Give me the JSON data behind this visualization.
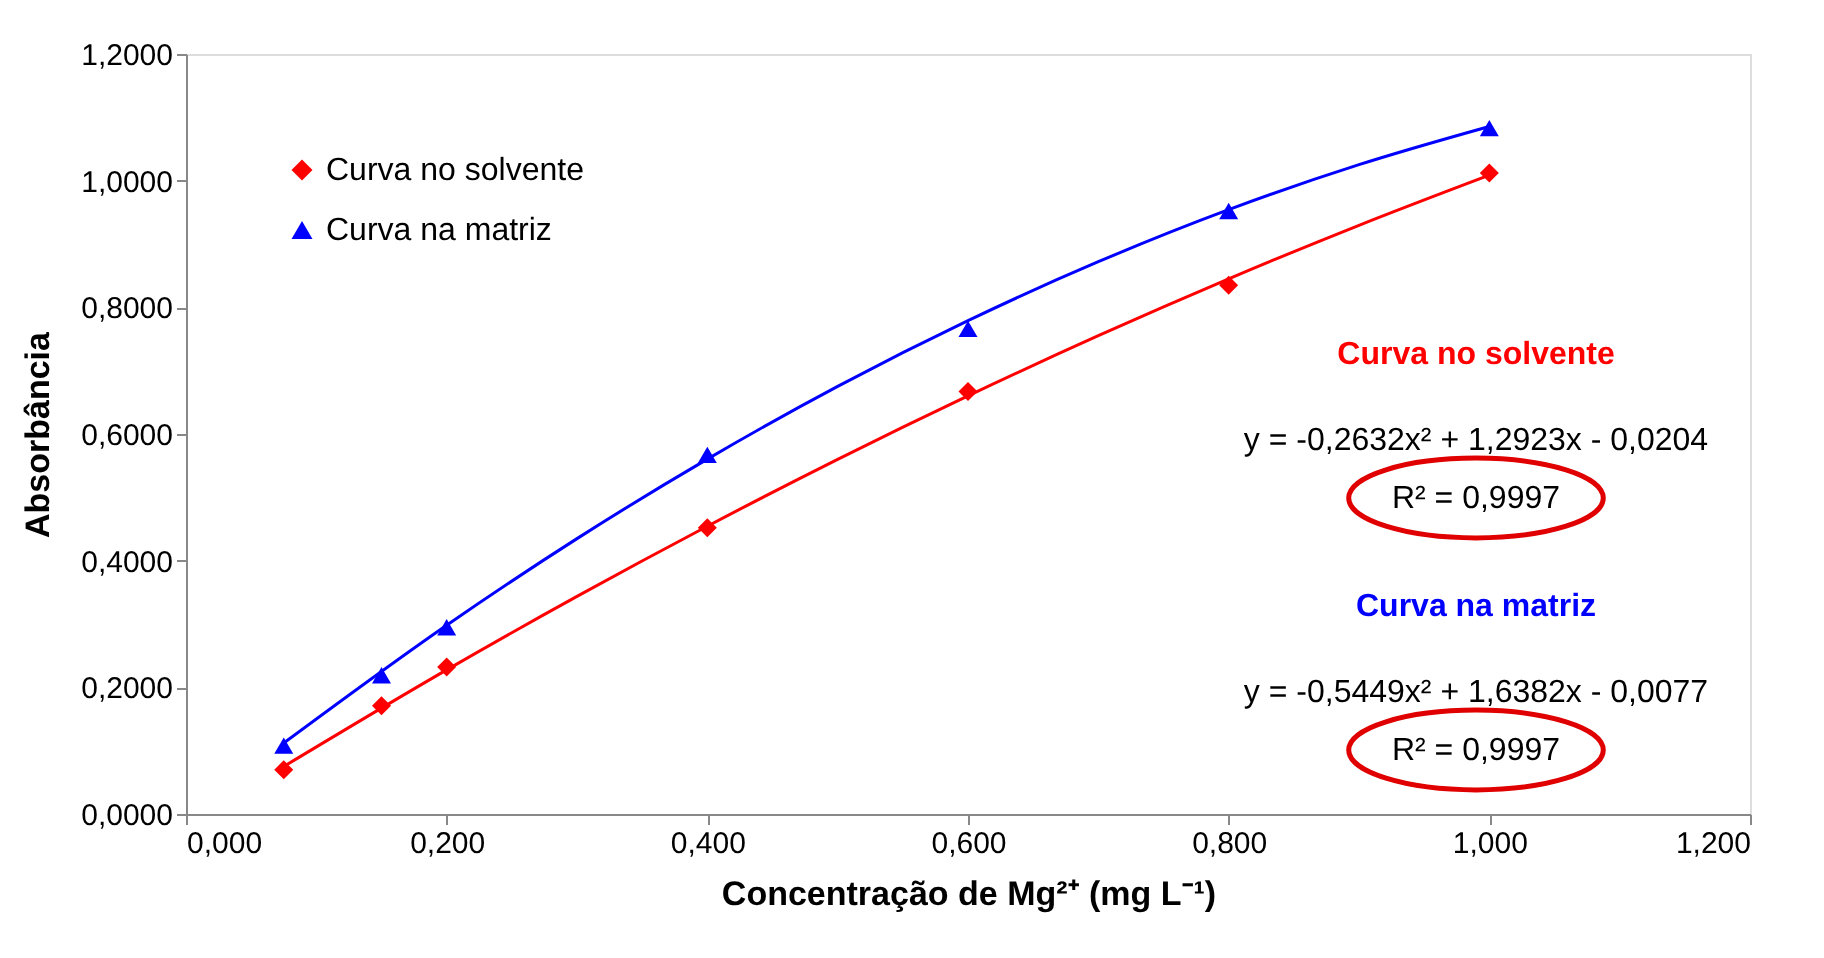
{
  "chart_data": {
    "type": "scatter",
    "xlabel": "Concentração de Mg²⁺ (mg L⁻¹)",
    "ylabel": "Absorbância",
    "x": [
      0.075,
      0.15,
      0.2,
      0.4,
      0.6,
      0.8,
      1.0
    ],
    "series": [
      {
        "name": "Curva no solvente",
        "color": "#ff0000",
        "marker": "diamond",
        "values": [
          0.07,
          0.171,
          0.232,
          0.452,
          0.667,
          0.835,
          1.012
        ]
      },
      {
        "name": "Curva na matriz",
        "color": "#0000ff",
        "marker": "triangle",
        "values": [
          0.108,
          0.219,
          0.295,
          0.567,
          0.766,
          0.952,
          1.083
        ]
      },
      {
        "type": "line",
        "color": "#ff0000",
        "x": [
          0.075,
          0.2,
          0.3,
          0.4,
          0.5,
          0.6,
          0.7,
          0.8,
          0.9,
          1.0
        ],
        "values": [
          0.075,
          0.2276,
          0.3436,
          0.4544,
          0.56,
          0.6602,
          0.7552,
          0.845,
          0.9295,
          1.0087
        ]
      },
      {
        "type": "line",
        "color": "#0000ff",
        "x": [
          0.075,
          0.2,
          0.3,
          0.4,
          0.5,
          0.6,
          0.7,
          0.8,
          0.9,
          1.0
        ],
        "values": [
          0.1121,
          0.2981,
          0.4348,
          0.5604,
          0.6752,
          0.779,
          0.872,
          0.9542,
          1.0253,
          1.0856
        ]
      }
    ],
    "xlim": [
      0,
      1.2
    ],
    "ylim": [
      0,
      1.2
    ],
    "xticks": [
      {
        "value": 0,
        "label": "0,000"
      },
      {
        "value": 0.2,
        "label": "0,200"
      },
      {
        "value": 0.4,
        "label": "0,400"
      },
      {
        "value": 0.6,
        "label": "0,600"
      },
      {
        "value": 0.8,
        "label": "0,800"
      },
      {
        "value": 1.0,
        "label": "1,000"
      },
      {
        "value": 1.2,
        "label": "1,200"
      }
    ],
    "yticks": [
      {
        "value": 0,
        "label": "0,0000"
      },
      {
        "value": 0.2,
        "label": "0,2000"
      },
      {
        "value": 0.4,
        "label": "0,4000"
      },
      {
        "value": 0.6,
        "label": "0,6000"
      },
      {
        "value": 0.8,
        "label": "0,8000"
      },
      {
        "value": 1.0,
        "label": "1,0000"
      },
      {
        "value": 1.2,
        "label": "1,2000"
      }
    ],
    "annotations": [
      "Curva no solvente",
      "y = -0,2632x² + 1,2923x - 0,0204",
      "R² = 0,9997",
      "Curva na matriz",
      "y = -0,5449x² + 1,6382x - 0,0077",
      "R² = 0,9997"
    ],
    "legend": "top left",
    "grid": false
  }
}
